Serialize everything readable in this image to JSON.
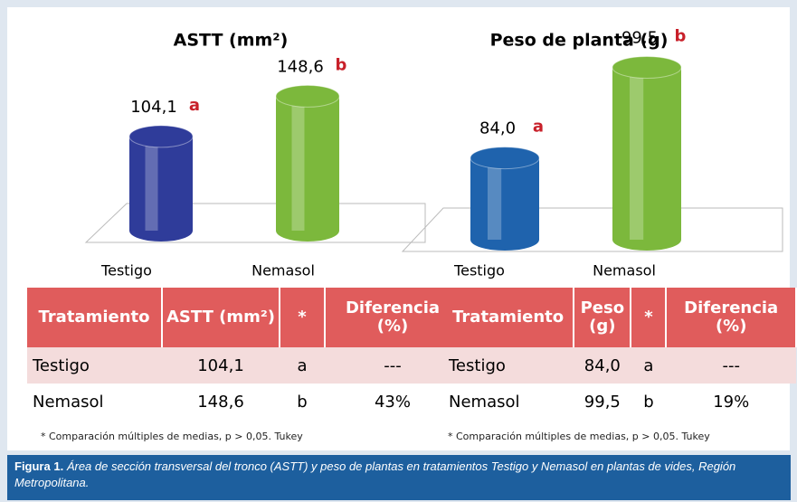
{
  "chart_data": [
    {
      "type": "bar",
      "title": "ASTT (mm²)",
      "categories": [
        "Testigo",
        "Nemasol"
      ],
      "values": [
        104.1,
        148.6
      ],
      "value_labels": [
        "104,1",
        "148,6"
      ],
      "significance": [
        "a",
        "b"
      ],
      "colors": [
        "#2f3c9a",
        "#7cb83c"
      ],
      "ylim": [
        0,
        180
      ]
    },
    {
      "type": "bar",
      "title": "Peso de planta (g)",
      "categories": [
        "Testigo",
        "Nemasol"
      ],
      "values": [
        84.0,
        99.5
      ],
      "value_labels": [
        "84,0",
        "99,5"
      ],
      "significance": [
        "a",
        "b"
      ],
      "colors": [
        "#1f63ad",
        "#7cb83c"
      ],
      "ylim": [
        70,
        105
      ]
    }
  ],
  "tables": [
    {
      "header": [
        "Tratamiento",
        "ASTT (mm²)",
        "*",
        "Diferencia (%)"
      ],
      "rows": [
        [
          "Testigo",
          "104,1",
          "a",
          "---"
        ],
        [
          "Nemasol",
          "148,6",
          "b",
          "43%"
        ]
      ],
      "note": "* Comparación múltiples de medias, p > 0,05. Tukey"
    },
    {
      "header": [
        "Tratamiento",
        "Peso (g)",
        "*",
        "Diferencia (%)"
      ],
      "rows": [
        [
          "Testigo",
          "84,0",
          "a",
          "---"
        ],
        [
          "Nemasol",
          "99,5",
          "b",
          "19%"
        ]
      ],
      "note": "* Comparación múltiples de medias, p > 0,05. Tukey"
    }
  ],
  "caption": {
    "label": "Figura 1.",
    "text": "Área de sección transversal del tronco (ASTT) y peso de plantas en tratamientos Testigo y Nemasol en plantas de vides, Región Metropolitana."
  }
}
